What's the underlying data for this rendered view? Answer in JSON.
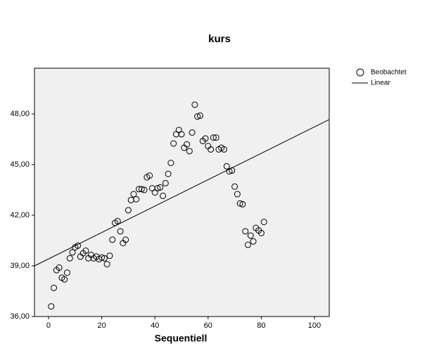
{
  "chart_data": {
    "type": "scatter",
    "title": "kurs",
    "x_label": "Sequentiell",
    "xlim": [
      -5.29,
      105.56
    ],
    "ylim": [
      36,
      50.71
    ],
    "xticks": [
      0,
      20,
      40,
      60,
      80,
      100
    ],
    "yticks": [
      {
        "value": 36,
        "label": "36,00"
      },
      {
        "value": 39,
        "label": "39,00"
      },
      {
        "value": 42,
        "label": "42,00"
      },
      {
        "value": 45,
        "label": "45,00"
      },
      {
        "value": 48,
        "label": "48,00"
      }
    ],
    "legend": "right",
    "series": [
      {
        "name": "Beobachtet",
        "type": "scatter",
        "color": "#000000",
        "x": [
          1,
          2,
          3,
          4,
          5,
          6,
          7,
          8,
          9,
          10,
          11,
          12,
          13,
          14,
          15,
          16,
          17,
          18,
          19,
          20,
          21,
          22,
          23,
          24,
          25,
          26,
          27,
          28,
          29,
          30,
          31,
          32,
          33,
          34,
          35,
          36,
          37,
          38,
          39,
          40,
          41,
          42,
          43,
          44,
          45,
          46,
          47,
          48,
          49,
          50,
          51,
          52,
          53,
          54,
          55,
          56,
          57,
          58,
          59,
          60,
          61,
          62,
          63,
          64,
          65,
          66,
          67,
          68,
          69,
          70,
          71,
          72,
          73,
          74,
          75,
          76,
          77,
          78,
          79,
          80,
          81
        ],
        "values": [
          36.6,
          37.7,
          38.75,
          38.9,
          38.3,
          38.2,
          38.6,
          39.45,
          39.8,
          40.1,
          40.2,
          39.55,
          39.75,
          39.9,
          39.45,
          39.65,
          39.45,
          39.55,
          39.4,
          39.5,
          39.45,
          39.1,
          39.6,
          40.55,
          41.55,
          41.65,
          41.05,
          40.35,
          40.55,
          42.3,
          42.9,
          43.25,
          42.95,
          43.55,
          43.55,
          43.5,
          44.25,
          44.35,
          43.6,
          43.35,
          43.6,
          43.65,
          43.15,
          43.9,
          44.45,
          45.1,
          46.25,
          46.8,
          47.05,
          46.8,
          46.0,
          46.2,
          45.8,
          46.9,
          48.55,
          47.85,
          47.9,
          46.4,
          46.55,
          46.1,
          45.9,
          46.6,
          46.6,
          45.9,
          46.0,
          45.9,
          44.9,
          44.6,
          44.65,
          43.7,
          43.25,
          42.7,
          42.65,
          41.05,
          40.25,
          40.8,
          40.45,
          41.25,
          41.1,
          40.95,
          41.6
        ]
      },
      {
        "name": "Linear",
        "type": "line",
        "color": "#000000",
        "x": [
          -5.29,
          105.56
        ],
        "values": [
          39.0,
          47.67
        ]
      }
    ]
  }
}
